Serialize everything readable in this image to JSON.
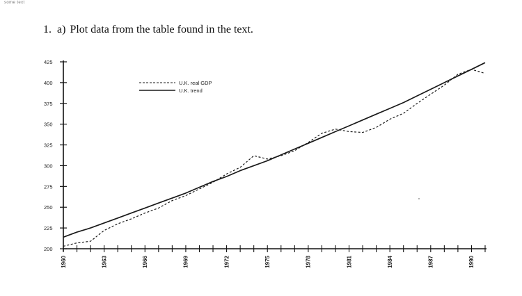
{
  "header": {
    "corner_mark": "some text",
    "question_number": "1.",
    "question_part": "a)",
    "question_text": "Plot data from the table found in the text."
  },
  "colors": {
    "line": "#1a1a1a",
    "axis": "#111111",
    "background": "#ffffff"
  },
  "chart_data": {
    "type": "line",
    "title": "",
    "xlabel": "",
    "ylabel": "",
    "xlim": [
      1960,
      1991
    ],
    "ylim": [
      200,
      425
    ],
    "yticks": [
      200,
      225,
      250,
      275,
      300,
      325,
      350,
      375,
      400,
      425
    ],
    "ytick_labels": [
      "200",
      "225",
      "250",
      "275",
      "300",
      "325",
      "350",
      "375",
      "400",
      "425"
    ],
    "xticks_labeled": [
      1960,
      1963,
      1966,
      1969,
      1972,
      1975,
      1978,
      1981,
      1984,
      1987,
      1990
    ],
    "xtick_labels": [
      "1960",
      "1963",
      "1966",
      "1969",
      "1972",
      "1975",
      "1978",
      "1981",
      "1984",
      "1987",
      "1990"
    ],
    "xticks_minor_step": 1,
    "legend_position": "top-left",
    "grid": false,
    "series": [
      {
        "name": "U.K. real GDP",
        "style": "dashed",
        "x": [
          1960,
          1961,
          1962,
          1963,
          1964,
          1965,
          1966,
          1967,
          1968,
          1969,
          1970,
          1971,
          1972,
          1973,
          1974,
          1975,
          1976,
          1977,
          1978,
          1979,
          1980,
          1981,
          1982,
          1983,
          1984,
          1985,
          1986,
          1987,
          1988,
          1989,
          1990,
          1991
        ],
        "y": [
          203,
          207,
          209,
          222,
          230,
          236,
          243,
          249,
          258,
          264,
          272,
          280,
          290,
          298,
          312,
          308,
          312,
          318,
          328,
          339,
          344,
          341,
          340,
          346,
          356,
          363,
          375,
          386,
          397,
          410,
          416,
          411
        ]
      },
      {
        "name": "U.K. trend",
        "style": "solid",
        "x": [
          1960,
          1961,
          1962,
          1963,
          1964,
          1965,
          1966,
          1967,
          1968,
          1969,
          1970,
          1971,
          1972,
          1973,
          1974,
          1975,
          1976,
          1977,
          1978,
          1979,
          1980,
          1981,
          1982,
          1983,
          1984,
          1985,
          1986,
          1987,
          1988,
          1989,
          1990,
          1991
        ],
        "y": [
          214,
          220,
          225,
          231,
          237,
          243,
          249,
          255,
          261,
          267,
          274,
          281,
          287,
          294,
          300,
          306,
          313,
          320,
          327,
          334,
          341,
          348,
          355,
          362,
          369,
          376,
          384,
          392,
          400,
          408,
          416,
          424
        ]
      }
    ]
  }
}
